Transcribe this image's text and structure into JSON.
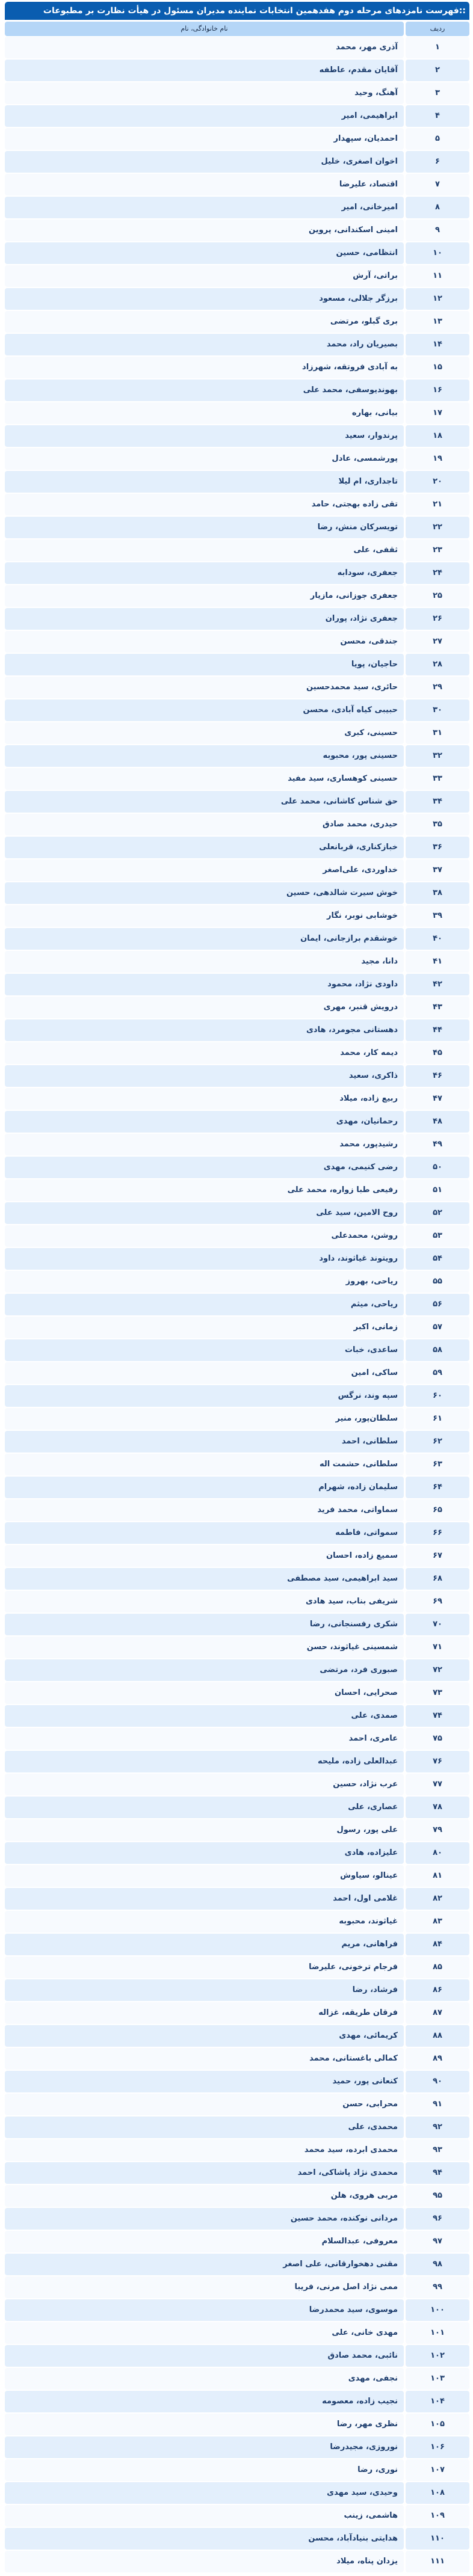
{
  "title": "::فهرست نامزدهای مرحله دوم هفدهمین انتخابات نماینده مدیران مسئول در هیأت نظارت بر مطبوعات",
  "header": {
    "number": "ردیف",
    "name": "نام خانوادگی، نام"
  },
  "colors": {
    "title_bar": "#0a5db0",
    "header": "#b5d6f7",
    "row_odd": "#f7fafe",
    "row_even": "#e3effc",
    "text": "#1d3d6d"
  },
  "rows": [
    {
      "n": "۱",
      "name": "آذری مهر، محمد"
    },
    {
      "n": "۲",
      "name": "آقایان مقدم، عاطفه"
    },
    {
      "n": "۳",
      "name": "آهنگ، وحید"
    },
    {
      "n": "۴",
      "name": "ابراهیمی، امیر"
    },
    {
      "n": "۵",
      "name": "احمدیان، سپهدار"
    },
    {
      "n": "۶",
      "name": "اخوان اصغری، خلیل"
    },
    {
      "n": "۷",
      "name": "اقتصاد، علیرضا"
    },
    {
      "n": "۸",
      "name": "امیرخانی، امیر"
    },
    {
      "n": "۹",
      "name": "امینی اسکندانی، پروین"
    },
    {
      "n": "۱۰",
      "name": "انتظامی، حسین"
    },
    {
      "n": "۱۱",
      "name": "براتی، آرش"
    },
    {
      "n": "۱۲",
      "name": "برزگر جلالی، مسعود"
    },
    {
      "n": "۱۳",
      "name": "بری گبلو، مرتضی"
    },
    {
      "n": "۱۴",
      "name": "بصیریان راد، محمد"
    },
    {
      "n": "۱۵",
      "name": "به آبادی فروتقه، شهرزاد"
    },
    {
      "n": "۱۶",
      "name": "بهوندیوسفی، محمد علی"
    },
    {
      "n": "۱۷",
      "name": "بیانی، بهاره"
    },
    {
      "n": "۱۸",
      "name": "پرندوار، سعید"
    },
    {
      "n": "۱۹",
      "name": "پورشمسی، عادل"
    },
    {
      "n": "۲۰",
      "name": "تاجداری، ام لیلا"
    },
    {
      "n": "۲۱",
      "name": "تقی زاده بهجتی، حامد"
    },
    {
      "n": "۲۲",
      "name": "تویسرکان منش، رضا"
    },
    {
      "n": "۲۳",
      "name": "ثقفی، علی"
    },
    {
      "n": "۲۴",
      "name": "جعفری، سودابه"
    },
    {
      "n": "۲۵",
      "name": "جعفری جوزانی، مازیار"
    },
    {
      "n": "۲۶",
      "name": "جعفری نژاد، پوران"
    },
    {
      "n": "۲۷",
      "name": "جندقی، محسن"
    },
    {
      "n": "۲۸",
      "name": "حاجیان، پویا"
    },
    {
      "n": "۲۹",
      "name": "حائری، سید محمدحسین"
    },
    {
      "n": "۳۰",
      "name": "حبیبی کیاه آبادی، محسن"
    },
    {
      "n": "۳۱",
      "name": "حسینی، کبری"
    },
    {
      "n": "۳۲",
      "name": "حسینی پور، محبوبه"
    },
    {
      "n": "۳۳",
      "name": "حسینی کوهساری، سید مفید"
    },
    {
      "n": "۳۴",
      "name": "حق شناس کاشانی، محمد علی"
    },
    {
      "n": "۳۵",
      "name": "حیدری، محمد صادق"
    },
    {
      "n": "۳۶",
      "name": "خبازکناری، قربانعلی"
    },
    {
      "n": "۳۷",
      "name": "خداوردی، علی‌اصغر"
    },
    {
      "n": "۳۸",
      "name": "خوش سیرت شالدهی، حسین"
    },
    {
      "n": "۳۹",
      "name": "خوشابی نوبر، نگار"
    },
    {
      "n": "۴۰",
      "name": "خوشقدم برازجانی، ایمان"
    },
    {
      "n": "۴۱",
      "name": "دانا، مجید"
    },
    {
      "n": "۴۲",
      "name": "داودی نژاد، محمود"
    },
    {
      "n": "۴۳",
      "name": "درویش قنبر، مهری"
    },
    {
      "n": "۴۴",
      "name": "دهستانی مجومرد، هادی"
    },
    {
      "n": "۴۵",
      "name": "دیمه کار، محمد"
    },
    {
      "n": "۴۶",
      "name": "ذاکری، سعید"
    },
    {
      "n": "۴۷",
      "name": "ربیع زاده، میلاد"
    },
    {
      "n": "۴۸",
      "name": "رحمانیان، مهدی"
    },
    {
      "n": "۴۹",
      "name": "رشیدپور، محمد"
    },
    {
      "n": "۵۰",
      "name": "رضی کنیمی، مهدی"
    },
    {
      "n": "۵۱",
      "name": "رفیعی طبا زواره، محمد علی"
    },
    {
      "n": "۵۲",
      "name": "روح الامین، سید علی"
    },
    {
      "n": "۵۳",
      "name": "روشن، محمدعلی"
    },
    {
      "n": "۵۴",
      "name": "رویتوند غیاثوند، داود"
    },
    {
      "n": "۵۵",
      "name": "ریاحی، بهروز"
    },
    {
      "n": "۵۶",
      "name": "ریاحی، میثم"
    },
    {
      "n": "۵۷",
      "name": "زمانی، اکبر"
    },
    {
      "n": "۵۸",
      "name": "ساعدی، خبات"
    },
    {
      "n": "۵۹",
      "name": "ساکی، امین"
    },
    {
      "n": "۶۰",
      "name": "سپه وند، نرگس"
    },
    {
      "n": "۶۱",
      "name": "سلطان‌پور، منیر"
    },
    {
      "n": "۶۲",
      "name": "سلطانی، احمد"
    },
    {
      "n": "۶۳",
      "name": "سلطانی، حشمت اله"
    },
    {
      "n": "۶۴",
      "name": "سلیمان زاده، شهرام"
    },
    {
      "n": "۶۵",
      "name": "سماواتی، محمد فرید"
    },
    {
      "n": "۶۶",
      "name": "سمواتی، فاطمه"
    },
    {
      "n": "۶۷",
      "name": "سمیع زاده، احسان"
    },
    {
      "n": "۶۸",
      "name": "سید ابراهیمی، سید مصطفی"
    },
    {
      "n": "۶۹",
      "name": "شریفی بناب، سید هادی"
    },
    {
      "n": "۷۰",
      "name": "شکری رفسنجانی، رضا"
    },
    {
      "n": "۷۱",
      "name": "شمسینی غیاثوند، حسن"
    },
    {
      "n": "۷۲",
      "name": "صبوری فرد، مرتضی"
    },
    {
      "n": "۷۳",
      "name": "صحرایی، احسان"
    },
    {
      "n": "۷۴",
      "name": "صمدی، علی"
    },
    {
      "n": "۷۵",
      "name": "عامری، احمد"
    },
    {
      "n": "۷۶",
      "name": "عبدالعلی زاده، ملیحه"
    },
    {
      "n": "۷۷",
      "name": "عرب نژاد، حسین"
    },
    {
      "n": "۷۸",
      "name": "عصاری، علی"
    },
    {
      "n": "۷۹",
      "name": "علی پور، رسول"
    },
    {
      "n": "۸۰",
      "name": "علیزاده، هادی"
    },
    {
      "n": "۸۱",
      "name": "عینالو، سیاوش"
    },
    {
      "n": "۸۲",
      "name": "غلامی اول، احمد"
    },
    {
      "n": "۸۳",
      "name": "غیاثوند، محبوبه"
    },
    {
      "n": "۸۴",
      "name": "فراهانی، مریم"
    },
    {
      "n": "۸۵",
      "name": "فرجام ترخونی، علیرضا"
    },
    {
      "n": "۸۶",
      "name": "فرشاد، رضا"
    },
    {
      "n": "۸۷",
      "name": "فرقان طریقه، غزاله"
    },
    {
      "n": "۸۸",
      "name": "کریمائی، مهدی"
    },
    {
      "n": "۸۹",
      "name": "کمالی باغستانی، محمد"
    },
    {
      "n": "۹۰",
      "name": "کنعانی پور، حمید"
    },
    {
      "n": "۹۱",
      "name": "محرابی، حسن"
    },
    {
      "n": "۹۲",
      "name": "محمدی، علی"
    },
    {
      "n": "۹۳",
      "name": "محمدی ابرده، سید محمد"
    },
    {
      "n": "۹۴",
      "name": "محمدی نژاد پاشاکی، احمد"
    },
    {
      "n": "۹۵",
      "name": "مربی هروی، هلن"
    },
    {
      "n": "۹۶",
      "name": "مردانی نوکنده، محمد حسین"
    },
    {
      "n": "۹۷",
      "name": "معروفی، عبدالسلام"
    },
    {
      "n": "۹۸",
      "name": "مقنی دهخوارقانی، علی اصغر"
    },
    {
      "n": "۹۹",
      "name": "ممی نژاد اصل مرنی، فریبا"
    },
    {
      "n": "۱۰۰",
      "name": "موسوی، سید محمدرضا"
    },
    {
      "n": "۱۰۱",
      "name": "مهدی خانی، علی"
    },
    {
      "n": "۱۰۲",
      "name": "نائبی، محمد صادق"
    },
    {
      "n": "۱۰۳",
      "name": "نجفی، مهدی"
    },
    {
      "n": "۱۰۴",
      "name": "نجیب زاده، معصومه"
    },
    {
      "n": "۱۰۵",
      "name": "نظری مهر، رضا"
    },
    {
      "n": "۱۰۶",
      "name": "نوروزی، مجیدرضا"
    },
    {
      "n": "۱۰۷",
      "name": "نوری، رضا"
    },
    {
      "n": "۱۰۸",
      "name": "وحیدی، سید مهدی"
    },
    {
      "n": "۱۰۹",
      "name": "هاشمی، زینب"
    },
    {
      "n": "۱۱۰",
      "name": "هدایتی بنیادآباد، محسن"
    },
    {
      "n": "۱۱۱",
      "name": "یزدان پناه، میلاد"
    }
  ]
}
